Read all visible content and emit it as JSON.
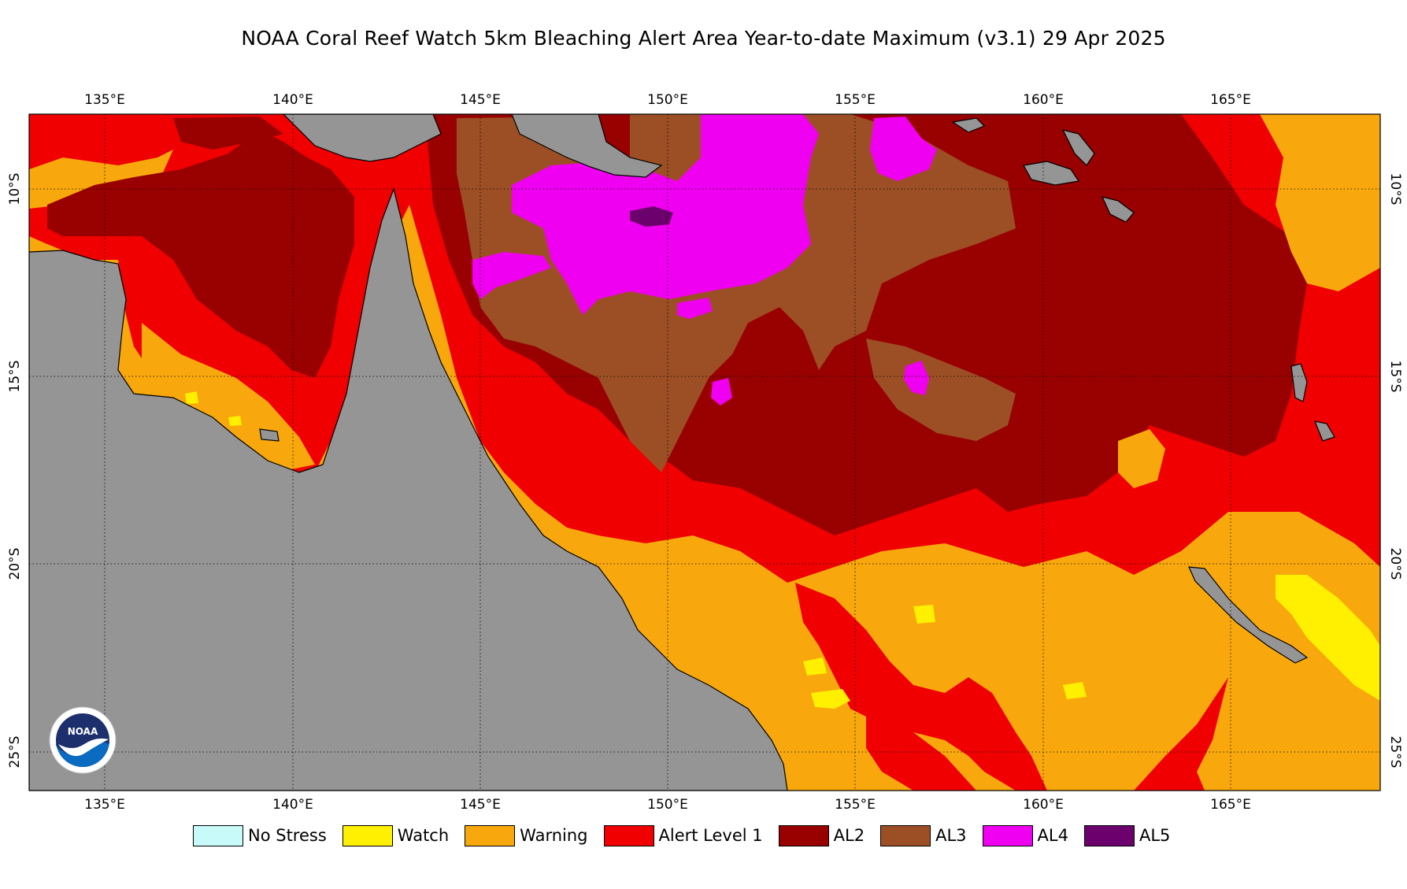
{
  "title": "NOAA Coral Reef Watch 5km Bleaching Alert Area Year-to-date Maximum  (v3.1)   29 Apr 2025",
  "map": {
    "extent": {
      "lon_min": 133,
      "lon_max": 169,
      "lat_min": -25.5,
      "lat_max": -7.5
    },
    "lon_ticks": [
      {
        "value": 135,
        "label": "135°E"
      },
      {
        "value": 140,
        "label": "140°E"
      },
      {
        "value": 145,
        "label": "145°E"
      },
      {
        "value": 150,
        "label": "150°E"
      },
      {
        "value": 155,
        "label": "155°E"
      },
      {
        "value": 160,
        "label": "160°E"
      },
      {
        "value": 165,
        "label": "165°E"
      }
    ],
    "lat_ticks": [
      {
        "value": -10,
        "label": "10°S"
      },
      {
        "value": -15,
        "label": "15°S"
      },
      {
        "value": -20,
        "label": "20°S"
      },
      {
        "value": -25,
        "label": "25°S"
      }
    ],
    "gridlines": "dotted",
    "land_color": "#959595"
  },
  "legend": [
    {
      "label": "No Stress",
      "color": "#c8fafa"
    },
    {
      "label": "Watch",
      "color": "#ffef00"
    },
    {
      "label": "Warning",
      "color": "#f8a80c"
    },
    {
      "label": "Alert Level 1",
      "color": "#f00000"
    },
    {
      "label": "AL2",
      "color": "#990000"
    },
    {
      "label": "AL3",
      "color": "#9c4f24"
    },
    {
      "label": "AL4",
      "color": "#f000f0"
    },
    {
      "label": "AL5",
      "color": "#6c006c"
    }
  ],
  "logo": {
    "name": "noaa-logo",
    "text": "NOAA"
  }
}
